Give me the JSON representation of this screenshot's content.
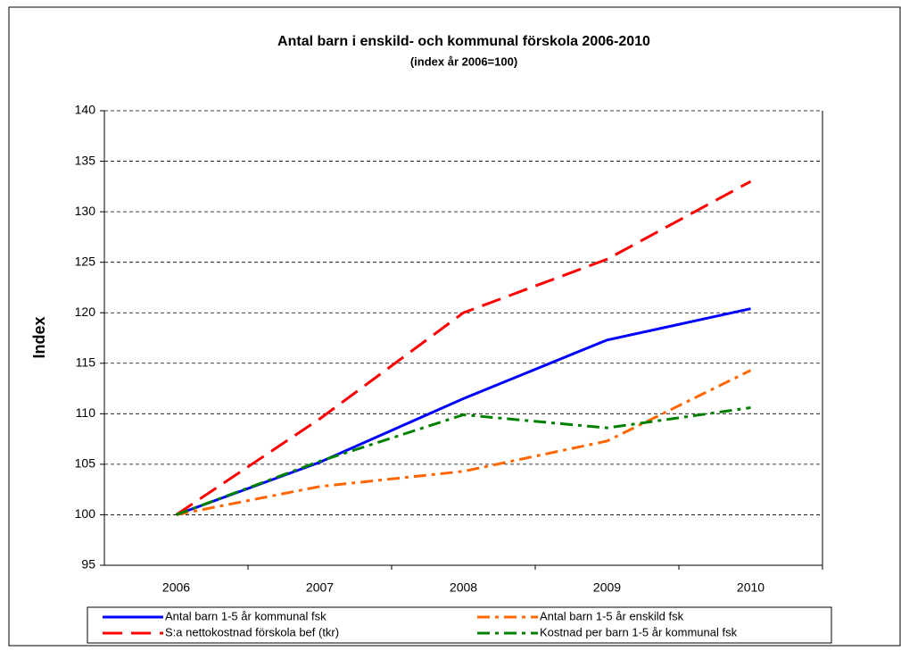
{
  "chart_data": {
    "type": "line",
    "title": "Antal barn i enskild- och kommunal förskola 2006-2010",
    "subtitle": "(index år 2006=100)",
    "y_label": "Index",
    "categories": [
      "2006",
      "2007",
      "2008",
      "2009",
      "2010"
    ],
    "series": [
      {
        "name": "Antal barn 1-5 år kommunal fsk",
        "color": "#0000ff",
        "dash": "solid",
        "values": [
          100,
          105.2,
          111.5,
          117.3,
          120.4
        ]
      },
      {
        "name": "Antal barn 1-5 år enskild fsk",
        "color": "#ff6600",
        "dash": "dash-dot",
        "values": [
          100,
          102.8,
          104.3,
          107.3,
          114.3
        ]
      },
      {
        "name": "S:a nettokostnad förskola bef (tkr)",
        "color": "#ff0000",
        "dash": "long-dash",
        "values": [
          100,
          109.5,
          120,
          125.3,
          133
        ]
      },
      {
        "name": "Kostnad per barn 1-5 år kommunal fsk",
        "color": "#008000",
        "dash": "dash-dot",
        "values": [
          100,
          105.3,
          109.9,
          108.6,
          110.6
        ]
      }
    ],
    "ylim": [
      95,
      140
    ],
    "yticks": [
      95,
      100,
      105,
      110,
      115,
      120,
      125,
      130,
      135,
      140
    ],
    "grid": true
  }
}
